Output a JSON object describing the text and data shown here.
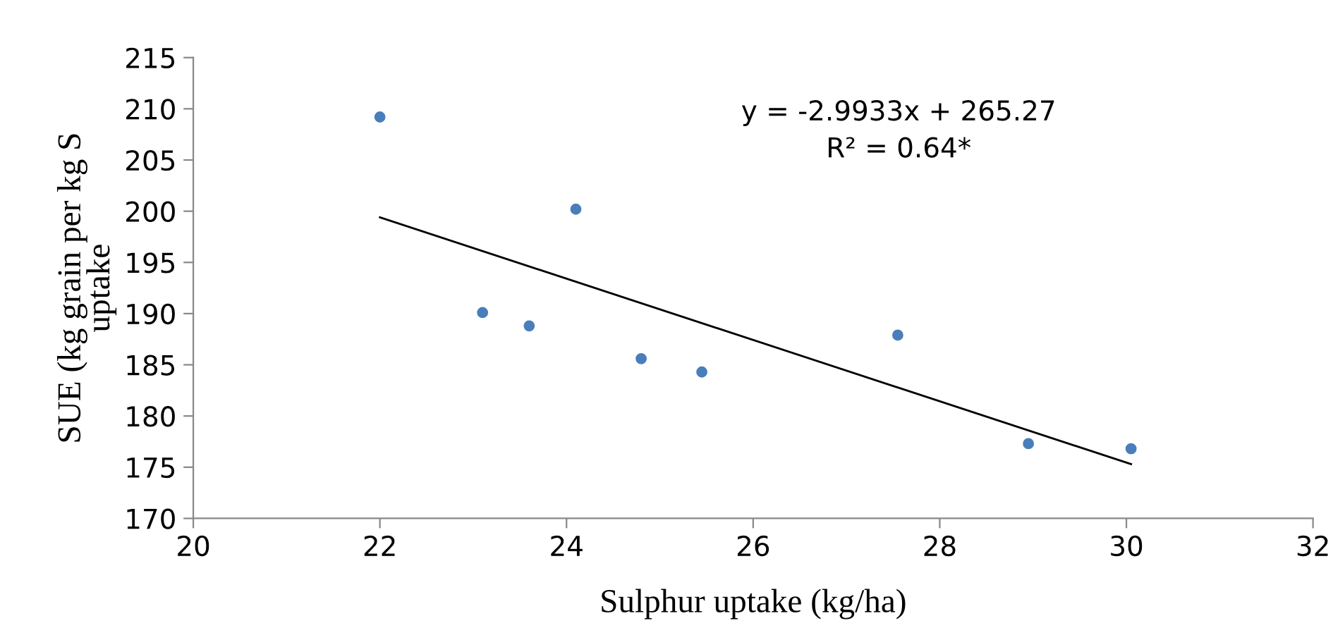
{
  "chart_data": {
    "type": "scatter",
    "xlabel": "Sulphur uptake (kg/ha)",
    "ylabel": "SUE (kg grain per kg S\nuptake",
    "xlim": [
      20,
      32
    ],
    "xticks": [
      20,
      22,
      24,
      26,
      28,
      30,
      32
    ],
    "ylim": [
      170,
      215
    ],
    "yticks": [
      170,
      175,
      180,
      185,
      190,
      195,
      200,
      205,
      210,
      215
    ],
    "grid": false,
    "marker": "circle",
    "series": [
      {
        "color": "#4a7ebb",
        "x": [
          22.0,
          23.1,
          23.6,
          24.1,
          24.8,
          25.45,
          27.55,
          28.95,
          30.05
        ],
        "values": [
          209.2,
          190.1,
          188.8,
          200.2,
          185.6,
          184.3,
          187.9,
          177.3,
          176.8
        ]
      },
      {
        "type": "line",
        "color": "#000000",
        "x": [
          22.0,
          30.05
        ],
        "values": [
          199.4,
          175.3
        ],
        "marker": "none"
      }
    ],
    "annotations": [
      "y = -2.9933x + 265.27\nR² = 0.64*"
    ]
  }
}
